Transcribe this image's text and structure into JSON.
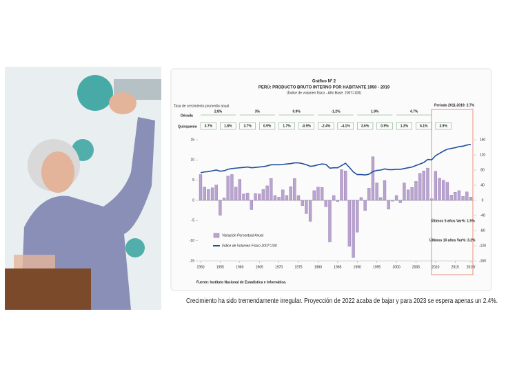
{
  "chart_data": {
    "type": "bar",
    "title": "Gráfico Nº 2",
    "subtitle": "PERÚ: PRODUCTO BRUTO INTERNO POR HABITANTE 1950 - 2019",
    "note": "(Índice de volumen físico - Año Base: 2007=100)",
    "source": "Fuente: Instituto Nacional de Estadística e Informática.",
    "x": [
      1950,
      1951,
      1952,
      1953,
      1954,
      1955,
      1956,
      1957,
      1958,
      1959,
      1960,
      1961,
      1962,
      1963,
      1964,
      1965,
      1966,
      1967,
      1968,
      1969,
      1970,
      1971,
      1972,
      1973,
      1974,
      1975,
      1976,
      1977,
      1978,
      1979,
      1980,
      1981,
      1982,
      1983,
      1984,
      1985,
      1986,
      1987,
      1988,
      1989,
      1990,
      1991,
      1992,
      1993,
      1994,
      1995,
      1996,
      1997,
      1998,
      1999,
      2000,
      2001,
      2002,
      2003,
      2004,
      2005,
      2006,
      2007,
      2008,
      2009,
      2010,
      2011,
      2012,
      2013,
      2014,
      2015,
      2016,
      2017,
      2018,
      2019
    ],
    "series": [
      {
        "name": "Variación Porcentual Anual",
        "type": "bar",
        "color": "#b9a3cf",
        "values": [
          6.4,
          3.3,
          2.7,
          3.1,
          3.8,
          -3.7,
          0.6,
          6.0,
          6.4,
          3.3,
          5.2,
          1.6,
          1.8,
          -2.3,
          1.7,
          1.6,
          2.7,
          3.6,
          5.4,
          1.2,
          0.8,
          2.6,
          1.2,
          3.4,
          5.4,
          1.2,
          -1.3,
          -3.3,
          -5.2,
          2.4,
          3.3,
          3.2,
          -1.6,
          -10.3,
          1.2,
          -0.3,
          7.6,
          7.3,
          -11.4,
          -14.2,
          -7.9,
          0.7,
          -2.5,
          3.0,
          10.8,
          4.3,
          0.7,
          4.9,
          -2.2,
          -0.2,
          1.2,
          -0.6,
          4.3,
          2.6,
          3.2,
          4.7,
          6.7,
          7.3,
          8.0,
          0.4,
          7.2,
          5.5,
          5.0,
          4.5,
          1.3,
          2.0,
          2.4,
          1.0,
          2.1,
          0.8
        ]
      },
      {
        "name": "Índice de Volumen Físico 2007=100",
        "type": "line",
        "axis": "y2",
        "color": "#1f4e9a",
        "values": [
          73,
          75,
          76,
          78,
          80,
          77,
          78,
          82,
          84,
          85,
          86,
          87,
          88,
          86,
          87,
          88,
          89,
          91,
          94,
          94,
          94,
          95,
          96,
          97,
          99,
          99,
          97,
          94,
          90,
          91,
          94,
          96,
          95,
          85,
          86,
          86,
          92,
          98,
          87,
          75,
          68,
          68,
          67,
          69,
          76,
          79,
          80,
          83,
          81,
          81,
          82,
          82,
          84,
          86,
          88,
          92,
          96,
          100,
          108,
          107,
          118,
          124,
          130,
          135,
          137,
          139,
          142,
          143,
          146,
          148
        ]
      }
    ],
    "xlim": [
      1950,
      2019
    ],
    "xticks": [
      1950,
      1955,
      1960,
      1965,
      1970,
      1975,
      1980,
      1985,
      1990,
      1995,
      2000,
      2005,
      2010,
      2015,
      {
        "value": 2019,
        "label": "2019/"
      }
    ],
    "ylim": [
      -15,
      15
    ],
    "yticks": [
      -15,
      -10,
      -5,
      0,
      5,
      10,
      15
    ],
    "y2lim": [
      -160,
      160
    ],
    "y2ticks": [
      -160,
      -120,
      -80,
      -40,
      0,
      40,
      80,
      120,
      160
    ],
    "growth_header": "Tasa de crecimiento promedio anual",
    "decade_label": "Década",
    "decades": [
      "2.8%",
      "3%",
      "0.9%",
      "-1.2%",
      "1.9%",
      "4.7%"
    ],
    "quinquennium_label": "Quinquenio",
    "quinquennia": [
      "3.7%",
      "1.8%",
      "3.7%",
      "0.9%",
      "1.7%",
      "-0.9%",
      "-2.4%",
      "-4.1%",
      "3.6%",
      "0.9%",
      "1.3%",
      "6.1%",
      "3.9%"
    ],
    "period_label": "Período 2011-2019: 2.7%",
    "annotations": [
      "Últimos 5 años Var%: 1.5%",
      "Últimos 10 años Var%: 3.2%"
    ]
  },
  "caption": "Crecimiento ha sido tremendamente irregular. Proyección de 2022 acaba de bajar y para 2023 se espera apenas un 2.4%."
}
